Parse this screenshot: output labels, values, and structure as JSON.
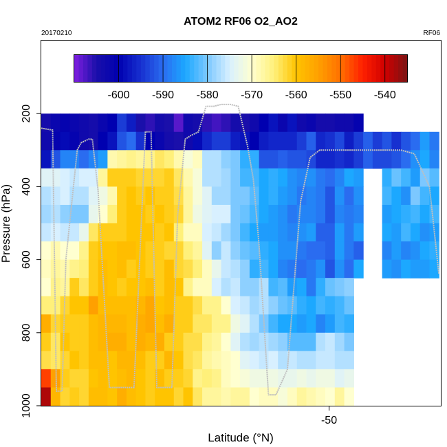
{
  "chart_data": {
    "type": "heatmap",
    "title": "ATOM2 RF06 O2_AO2",
    "date_label": "20170210",
    "flight_label": "RF06",
    "xlabel": "Latitude (°N)",
    "ylabel": "Pressure (hPa)",
    "x_ticks": [
      -50
    ],
    "x_tick_labels": [
      "-50"
    ],
    "xlim": [
      -65.2,
      -44.1
    ],
    "y_ticks": [
      200,
      400,
      600,
      800,
      1000
    ],
    "y_tick_labels": [
      "200",
      "400",
      "600",
      "800",
      "1000"
    ],
    "ylim": [
      1000,
      0
    ],
    "y_scale": "linear, inverted",
    "grid": false,
    "colorbar": {
      "placement": "top inset",
      "range": [
        -610,
        -535
      ],
      "ticks": [
        -600,
        -590,
        -580,
        -570,
        -560,
        -550,
        -540
      ],
      "tick_labels": [
        "-600",
        "-590",
        "-580",
        "-570",
        "-560",
        "-550",
        "-540"
      ],
      "colors": [
        "#7f1fe0",
        "#1a0faa",
        "#0000b0",
        "#1730d0",
        "#2a6cf0",
        "#1ca8ff",
        "#7cc8ff",
        "#d8f0ff",
        "#ffffd0",
        "#fff07a",
        "#ffc400",
        "#ffa000",
        "#ff7000",
        "#ff2000",
        "#d00000",
        "#7a1414"
      ]
    },
    "grid_x_edges": [
      -65.2,
      -64.7,
      -64.2,
      -63.7,
      -63.2,
      -62.7,
      -62.2,
      -61.7,
      -61.2,
      -60.7,
      -60.2,
      -59.7,
      -59.2,
      -58.7,
      -58.2,
      -57.7,
      -57.2,
      -56.7,
      -56.2,
      -55.7,
      -55.2,
      -54.7,
      -54.2,
      -53.7,
      -53.2,
      -52.7,
      -52.2,
      -51.7,
      -51.2,
      -50.7,
      -50.2,
      -49.7,
      -49.2,
      -48.7,
      -48.2,
      -47.7,
      -47.2,
      -46.7,
      -46.2,
      -45.7,
      -45.2,
      -44.7,
      -44.2
    ],
    "grid_p_edges": [
      200,
      250,
      300,
      350,
      400,
      450,
      500,
      550,
      600,
      650,
      700,
      750,
      800,
      850,
      900,
      950,
      1000
    ],
    "rows": [
      [
        -604,
        -602,
        -601,
        -602,
        -603,
        -604,
        -602,
        -600,
        -594,
        -597,
        -605,
        -606,
        -604,
        -605,
        -608,
        -603,
        -604,
        -606,
        -607,
        -606,
        -604,
        -605,
        -603,
        -600,
        -598,
        -602,
        -598,
        -603,
        -602,
        -604,
        -604,
        -603,
        -603,
        -601,
        null,
        null,
        null,
        null,
        null,
        null,
        null,
        null
      ],
      [
        -603,
        -601,
        -599,
        -601,
        -603,
        -604,
        -600,
        -598,
        -592,
        -590,
        -595,
        -600,
        -602,
        -604,
        -605,
        -603,
        -599,
        -596,
        -594,
        -594,
        -597,
        -598,
        -600,
        -597,
        -596,
        -596,
        -596,
        -594,
        -591,
        -596,
        -595,
        -593,
        -597,
        -594,
        -591,
        -594,
        -592,
        -595,
        -592,
        -590,
        -586,
        -589
      ],
      [
        -598,
        -592,
        -588,
        -588,
        -590,
        -588,
        -586,
        -568,
        -567,
        -566,
        -567,
        -566,
        -564,
        -565,
        -568,
        -571,
        -569,
        -577,
        -577,
        -579,
        -580,
        -584,
        -584,
        -592,
        -592,
        -591,
        -592,
        -592,
        -593,
        -596,
        -596,
        -595,
        -596,
        -594,
        -591,
        -593,
        -593,
        -592,
        -590,
        -587,
        -585,
        -588
      ],
      [
        -574,
        -574,
        -575,
        -576,
        -575,
        -575,
        -567,
        -561,
        -561,
        -561,
        -562,
        -562,
        -562,
        -561,
        -564,
        -568,
        -571,
        -577,
        -577,
        -578,
        -580,
        -583,
        -583,
        -585,
        -584,
        -585,
        -587,
        -588,
        -587,
        -589,
        -590,
        -588,
        -585,
        -586,
        null,
        null,
        -584,
        -581,
        -583,
        -586,
        -580,
        -582
      ],
      [
        -577,
        -576,
        -575,
        -577,
        -577,
        -574,
        -572,
        -568,
        -561,
        -560,
        -561,
        -560,
        -561,
        -561,
        -563,
        -567,
        -571,
        -574,
        -578,
        -578,
        -580,
        -580,
        -582,
        -585,
        -584,
        -586,
        -587,
        -589,
        -588,
        -589,
        -592,
        -587,
        -590,
        -587,
        null,
        null,
        -583,
        -585,
        -587,
        -580,
        -583,
        -585
      ],
      [
        -578,
        -577,
        -579,
        -580,
        -580,
        -573,
        -570,
        -565,
        -561,
        -560,
        -560,
        -561,
        -560,
        -561,
        -562,
        -567,
        -572,
        -574,
        -575,
        -575,
        -580,
        -581,
        -583,
        -585,
        -586,
        -587,
        -589,
        -588,
        -588,
        -589,
        -592,
        -588,
        -589,
        -588,
        null,
        null,
        -586,
        -585,
        -584,
        -583,
        -585,
        -583
      ],
      [
        -576,
        -575,
        -576,
        -576,
        -573,
        -564,
        -561,
        -561,
        -561,
        -560,
        -560,
        -560,
        -561,
        -560,
        -565,
        -569,
        -569,
        -575,
        -576,
        -578,
        -580,
        -583,
        -585,
        -586,
        -586,
        -587,
        -588,
        -587,
        -586,
        -591,
        -591,
        -586,
        -589,
        -586,
        null,
        null,
        -585,
        -586,
        -583,
        -585,
        -587,
        -586
      ],
      [
        -570,
        -568,
        -570,
        -570,
        -566,
        -561,
        -560,
        -560,
        -559,
        -559,
        -560,
        -561,
        -561,
        -562,
        -562,
        -565,
        -567,
        -574,
        -579,
        -576,
        -579,
        -581,
        -582,
        -584,
        -585,
        -587,
        -587,
        -589,
        -590,
        -590,
        -591,
        -586,
        -589,
        -591,
        null,
        null,
        -588,
        -586,
        -588,
        -587,
        -585,
        -584
      ],
      [
        -569,
        -567,
        -568,
        -566,
        -565,
        -561,
        -559,
        -560,
        -559,
        -561,
        -560,
        -561,
        -561,
        -559,
        -562,
        -563,
        -565,
        -569,
        -573,
        -576,
        -577,
        -579,
        -584,
        -583,
        -585,
        -588,
        -589,
        -590,
        -589,
        -587,
        -592,
        -587,
        -590,
        -585,
        null,
        null,
        -586,
        -587,
        -585,
        -586,
        -586,
        -585
      ],
      [
        -570,
        -566,
        -567,
        -561,
        -564,
        -561,
        -559,
        -560,
        -561,
        -560,
        -560,
        -559,
        -561,
        -559,
        -560,
        -566,
        -569,
        -569,
        -575,
        -577,
        -576,
        -579,
        -579,
        -577,
        -583,
        -582,
        -586,
        -585,
        -589,
        -584,
        -581,
        -580,
        -579,
        null,
        null,
        null,
        null,
        null,
        null,
        null,
        null,
        null
      ],
      [
        -565,
        -565,
        -562,
        -560,
        -560,
        -555,
        -559,
        -559,
        -559,
        -559,
        -558,
        -556,
        -560,
        -559,
        -561,
        -561,
        -563,
        -566,
        -566,
        -570,
        -575,
        -576,
        -578,
        -577,
        -579,
        -581,
        -582,
        -584,
        -585,
        -583,
        -584,
        -583,
        -581,
        null,
        null,
        null,
        null,
        null,
        null,
        null,
        null,
        null
      ],
      [
        -557,
        -562,
        -561,
        -561,
        -561,
        -559,
        -558,
        -558,
        -558,
        -559,
        -557,
        -556,
        -559,
        -557,
        -561,
        -561,
        -564,
        -564,
        -566,
        -566,
        -572,
        -574,
        -577,
        -580,
        -583,
        -585,
        -585,
        -586,
        -585,
        -588,
        -586,
        -583,
        -584,
        null,
        null,
        null,
        null,
        null,
        null,
        null,
        null,
        null
      ],
      [
        -561,
        -564,
        -560,
        -561,
        -561,
        -559,
        -558,
        -557,
        -557,
        -559,
        -557,
        -558,
        -557,
        -561,
        -561,
        -563,
        -563,
        -566,
        -567,
        -570,
        -574,
        -577,
        -578,
        -577,
        -578,
        -579,
        -582,
        -582,
        -582,
        -577,
        -576,
        -578,
        -580,
        null,
        null,
        null,
        null,
        null,
        null,
        null,
        null,
        null
      ],
      [
        -563,
        -564,
        -562,
        -560,
        -561,
        -559,
        -559,
        -560,
        -558,
        -558,
        -559,
        -561,
        -561,
        -558,
        -560,
        -563,
        -564,
        -567,
        -568,
        -569,
        -570,
        -574,
        -575,
        -576,
        -575,
        -577,
        -576,
        -577,
        -577,
        -576,
        -576,
        -577,
        -577,
        null,
        null,
        null,
        null,
        null,
        null,
        null,
        null,
        null
      ],
      [
        -547,
        -555,
        -561,
        -562,
        -562,
        -560,
        -559,
        -560,
        -559,
        -558,
        -560,
        -561,
        -559,
        -561,
        -561,
        -562,
        -566,
        -565,
        -566,
        -569,
        -570,
        -571,
        -572,
        -572,
        -572,
        -573,
        -573,
        -572,
        -573,
        -572,
        -572,
        -574,
        -573,
        null,
        null,
        null,
        null,
        null,
        null,
        null,
        null,
        null
      ],
      [
        -538,
        -558,
        -562,
        -561,
        -562,
        -559,
        -559,
        -560,
        -557,
        -559,
        -560,
        -561,
        -560,
        -560,
        -562,
        -560,
        -564,
        -567,
        -567,
        -568,
        -567,
        -567,
        -570,
        -569,
        -569,
        -571,
        -569,
        -567,
        -568,
        -569,
        -570,
        -567,
        -570,
        null,
        null,
        null,
        null,
        null,
        null,
        null,
        null,
        null
      ]
    ],
    "flight_track": {
      "lat": [
        -65.2,
        -64.6,
        -64.4,
        -64.1,
        -63.9,
        -63.3,
        -63.1,
        -62.7,
        -62.5,
        -62.2,
        -61.6,
        -60.3,
        -59.7,
        -59.4,
        -59.2,
        -59.1,
        -58.3,
        -58.0,
        -57.6,
        -57.3,
        -56.9,
        -56.5,
        -56.1,
        -55.7,
        -55.2,
        -54.8,
        -54.3,
        -54.0,
        -53.7,
        -53.2,
        -52.8,
        -52.2,
        -51.5,
        -51.0,
        -50.5,
        -49.8,
        -49.3,
        -48.2,
        -47.5,
        -46.8,
        -46.2,
        -45.5,
        -44.7,
        -44.2
      ],
      "pressure": [
        240,
        245,
        960,
        960,
        600,
        300,
        280,
        270,
        270,
        410,
        950,
        950,
        250,
        250,
        720,
        950,
        950,
        480,
        270,
        260,
        250,
        180,
        180,
        175,
        175,
        180,
        290,
        380,
        560,
        970,
        970,
        900,
        440,
        320,
        300,
        300,
        300,
        300,
        300,
        300,
        300,
        310,
        400,
        640
      ],
      "color": "#bfbfbf"
    }
  }
}
